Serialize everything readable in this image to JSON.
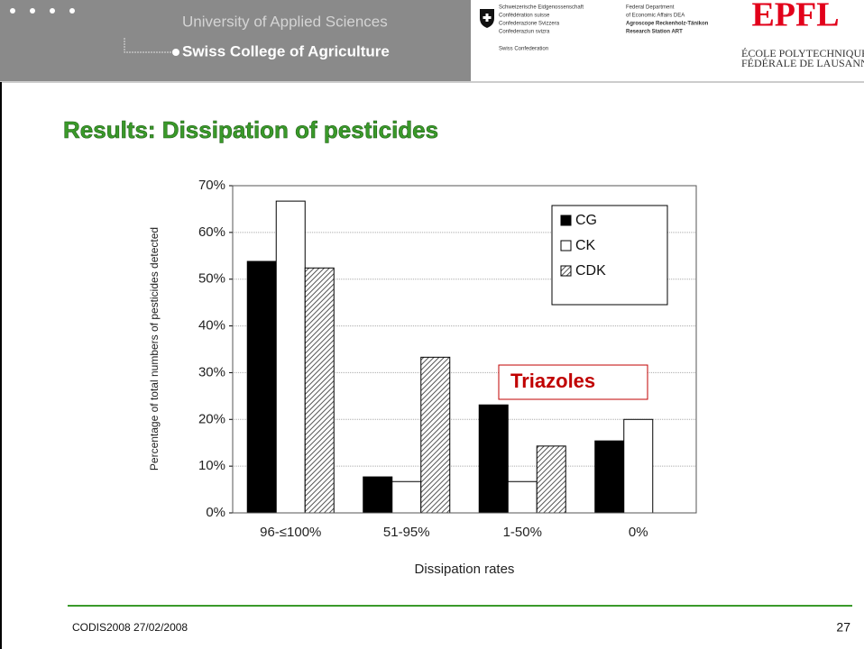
{
  "header": {
    "school": "University of Applied Sciences",
    "college": "Swiss College of Agriculture",
    "confederation": [
      "Schweizerische Eidgenossenschaft",
      "Confédération suisse",
      "Confederazione Svizzera",
      "Confederaziun svizra",
      "Swiss Confederation"
    ],
    "department": [
      "Federal Department",
      "of Economic Affairs DEA",
      "Agroscope Reckenholz-Tänikon",
      "Research Station ART"
    ],
    "epfl_logo": "EPFL",
    "epfl": [
      "ÉCOLE POLYTECHNIQUE",
      "FÉDÉRALE DE LAUSANNE"
    ]
  },
  "slide_title": "Results: Dissipation of pesticides",
  "chart_data": {
    "type": "bar",
    "x_label": "Dissipation rates",
    "y_label": "Percentage of total numbers of pesticides detected",
    "categories": [
      "96-≤100%",
      "51-95%",
      "1-50%",
      "0%"
    ],
    "series": [
      {
        "name": "CG",
        "color": "#000000",
        "values": [
          53.8,
          7.7,
          23.1,
          15.4
        ]
      },
      {
        "name": "CK",
        "color": "#ffffff",
        "values": [
          66.7,
          6.7,
          6.7,
          20.0
        ]
      },
      {
        "name": "CDK",
        "color": "#555555",
        "pattern": "hatch",
        "values": [
          52.4,
          33.3,
          14.3,
          0
        ]
      }
    ],
    "ylim": [
      0,
      70
    ],
    "yticks": [
      {
        "value": 0,
        "label": "0%"
      },
      {
        "value": 10,
        "label": "10%"
      },
      {
        "value": 20,
        "label": "20%"
      },
      {
        "value": 30,
        "label": "30%"
      },
      {
        "value": 40,
        "label": "40%"
      },
      {
        "value": 50,
        "label": "50%"
      },
      {
        "value": 60,
        "label": "60%"
      },
      {
        "value": 70,
        "label": "70%"
      }
    ],
    "grid": true,
    "legend": "upper right",
    "annotation": "Triazoles"
  },
  "footer": {
    "text": "CODIS2008 27/02/2008",
    "page": "27"
  }
}
